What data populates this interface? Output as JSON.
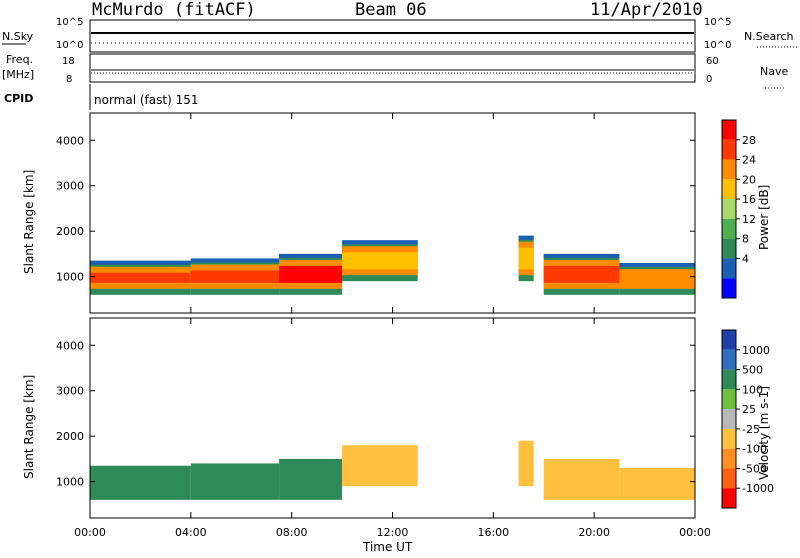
{
  "header": {
    "station": "McMurdo (fitACF)",
    "beam": "Beam 06",
    "date": "11/Apr/2010"
  },
  "top_panels": {
    "nsky_label": "N.Sky",
    "nsky_ticks": [
      "10^5",
      "10^0"
    ],
    "nsearch_label": "N.Search",
    "nsearch_ticks": [
      "10^5",
      "10^0"
    ],
    "freq_label_1": "Freq.",
    "freq_label_2": "[MHz]",
    "freq_ticks": [
      "18",
      "8"
    ],
    "nave_label": "Nave",
    "nave_ticks": [
      "60",
      "0"
    ],
    "cpid_label": "CPID",
    "cpid_value": "normal (fast) 151"
  },
  "axes": {
    "ylabel": "Slant Range [km]",
    "yticks": [
      "4000",
      "3000",
      "2000",
      "1000"
    ],
    "xticks": [
      "00:00",
      "04:00",
      "08:00",
      "12:00",
      "16:00",
      "20:00",
      "00:00"
    ],
    "xlabel": "Time UT"
  },
  "power_colorbar": {
    "label": "Power [dB]",
    "ticks": [
      "28",
      "24",
      "20",
      "16",
      "12",
      "8",
      "4"
    ],
    "colors": [
      "#ff0000",
      "#ff3a00",
      "#ff8c00",
      "#ffc000",
      "#a6d96a",
      "#4caf50",
      "#2e8b57",
      "#1a5fb4",
      "#0000ff"
    ]
  },
  "velocity_colorbar": {
    "label": "Velocity [m s-1]",
    "ticks": [
      "1000",
      "500",
      "100",
      "25",
      "-25",
      "-100",
      "-500",
      "-1000"
    ],
    "colors": [
      "#1f3fa8",
      "#2f6fc0",
      "#2e8b57",
      "#6ec040",
      "#b8b8b8",
      "#ffc040",
      "#ff9020",
      "#ff6010",
      "#ff0000"
    ]
  },
  "chart_data": {
    "type": "heatmap",
    "panels": [
      {
        "name": "power",
        "colorbar_label": "Power [dB]"
      },
      {
        "name": "velocity",
        "colorbar_label": "Velocity [m s-1]"
      }
    ],
    "x_range_hours": [
      0,
      24
    ],
    "y_range_km": [
      200,
      4600
    ],
    "xlabel": "Time UT",
    "ylabel": "Slant Range [km]",
    "echo_regions": [
      {
        "t_start": 0.0,
        "t_end": 4.0,
        "r_low": 600,
        "r_high": 1350,
        "power_db": 24,
        "velocity": 100
      },
      {
        "t_start": 4.0,
        "t_end": 7.5,
        "r_low": 600,
        "r_high": 1400,
        "power_db": 26,
        "velocity": 100
      },
      {
        "t_start": 7.5,
        "t_end": 10.0,
        "r_low": 600,
        "r_high": 1500,
        "power_db": 28,
        "velocity": 100
      },
      {
        "t_start": 10.0,
        "t_end": 13.0,
        "r_low": 900,
        "r_high": 1800,
        "power_db": 16,
        "velocity": -100
      },
      {
        "t_start": 17.0,
        "t_end": 17.6,
        "r_low": 900,
        "r_high": 1900,
        "power_db": 16,
        "velocity": -100
      },
      {
        "t_start": 18.0,
        "t_end": 21.0,
        "r_low": 600,
        "r_high": 1500,
        "power_db": 26,
        "velocity": -100
      },
      {
        "t_start": 21.0,
        "t_end": 24.0,
        "r_low": 600,
        "r_high": 1300,
        "power_db": 20,
        "velocity": -100
      }
    ]
  }
}
